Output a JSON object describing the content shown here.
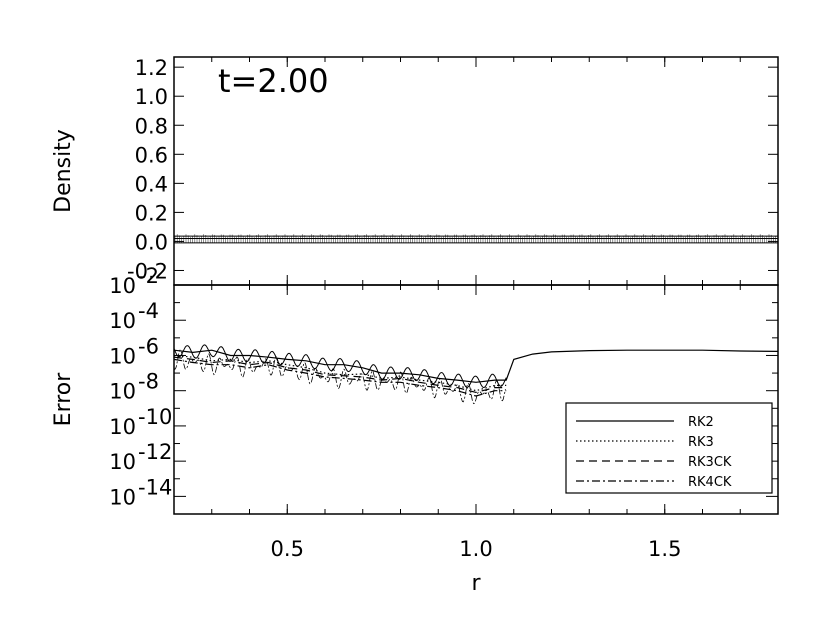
{
  "chart_data": [
    {
      "type": "line",
      "panel": "top",
      "annotation": "t=2.00",
      "xlabel": "",
      "ylabel": "Density",
      "xlim": [
        0.2,
        1.8
      ],
      "ylim": [
        -0.3,
        1.27
      ],
      "yticks": [
        1.2,
        1.0,
        0.8,
        0.6,
        0.4,
        0.2,
        0.0,
        -0.2
      ],
      "ytick_labels": [
        "1.2",
        "1.0",
        "0.8",
        "0.6",
        "0.4",
        "0.2",
        "0.0",
        "-0.2"
      ],
      "grid": false,
      "series": [
        {
          "x": [
            0.2,
            0.25,
            0.3,
            0.35,
            0.4,
            0.45,
            0.5,
            0.55,
            0.6,
            0.65,
            0.7,
            0.75,
            0.8,
            0.85,
            0.9,
            0.95,
            1.0,
            1.05,
            1.1,
            1.15,
            1.2,
            1.25,
            1.3,
            1.35,
            1.4,
            1.45,
            1.5,
            1.55,
            1.6,
            1.65,
            1.7,
            1.75,
            1.8
          ],
          "y": [
            0.02,
            0.02,
            0.02,
            0.02,
            0.02,
            0.02,
            0.02,
            0.02,
            0.02,
            0.02,
            0.02,
            0.02,
            0.02,
            0.02,
            0.02,
            0.02,
            0.02,
            0.02,
            0.02,
            0.02,
            0.02,
            0.02,
            0.02,
            0.02,
            0.02,
            0.02,
            0.02,
            0.02,
            0.02,
            0.02,
            0.02,
            0.02,
            0.02
          ]
        }
      ]
    },
    {
      "type": "line",
      "panel": "bottom",
      "xlabel": "r",
      "ylabel": "Error",
      "xlim": [
        0.2,
        1.8
      ],
      "yscale": "log",
      "ylim": [
        1e-15,
        0.01
      ],
      "xticks": [
        0.5,
        1.0,
        1.5
      ],
      "xtick_labels": [
        "0.5",
        "1.0",
        "1.5"
      ],
      "ytick_bases": [
        "10",
        "10",
        "10",
        "10",
        "10",
        "10",
        "10"
      ],
      "ytick_exponents": [
        "-2",
        "-4",
        "-6",
        "-8",
        "-10",
        "-12",
        "-14"
      ],
      "ytick_values_log10": [
        -2,
        -4,
        -6,
        -8,
        -10,
        -12,
        -14
      ],
      "legend_position": "lower-right",
      "grid": false,
      "series": [
        {
          "name": "RK2",
          "style": "solid",
          "x": [
            0.2,
            0.25,
            0.3,
            0.35,
            0.4,
            0.45,
            0.5,
            0.55,
            0.6,
            0.65,
            0.7,
            0.75,
            0.8,
            0.85,
            0.9,
            0.95,
            1.0,
            1.05,
            1.08,
            1.1,
            1.15,
            1.2,
            1.3,
            1.4,
            1.5,
            1.6,
            1.7,
            1.8
          ],
          "y": [
            2e-06,
            1.5e-06,
            2e-06,
            1e-06,
            1e-06,
            8e-07,
            6e-07,
            5e-07,
            3e-07,
            3e-07,
            2e-07,
            1e-07,
            1e-07,
            8e-08,
            5e-08,
            4e-08,
            3e-08,
            4e-08,
            4e-08,
            6e-07,
            1.2e-06,
            1.6e-06,
            1.9e-06,
            2e-06,
            2e-06,
            2e-06,
            1.8e-06,
            1.7e-06
          ]
        },
        {
          "name": "RK3",
          "style": "dotted",
          "x": [
            0.2,
            0.25,
            0.3,
            0.35,
            0.4,
            0.45,
            0.5,
            0.55,
            0.6,
            0.65,
            0.7,
            0.75,
            0.8,
            0.85,
            0.9,
            0.95,
            1.0,
            1.05,
            1.08
          ],
          "y": [
            1e-06,
            8e-07,
            5e-07,
            6e-07,
            4e-07,
            5e-07,
            3e-07,
            2e-07,
            1e-07,
            8e-08,
            9e-08,
            5e-08,
            6e-08,
            4e-08,
            3e-08,
            2e-08,
            1e-08,
            2e-08,
            2e-08
          ]
        },
        {
          "name": "RK3CK",
          "style": "dashed",
          "x": [
            0.2,
            0.25,
            0.3,
            0.35,
            0.4,
            0.45,
            0.5,
            0.55,
            0.6,
            0.65,
            0.7,
            0.75,
            0.8,
            0.85,
            0.9,
            0.95,
            1.0,
            1.05,
            1.08
          ],
          "y": [
            8e-07,
            6e-07,
            4e-07,
            5e-07,
            3e-07,
            4e-07,
            2e-07,
            1.5e-07,
            8e-08,
            7e-08,
            6e-08,
            4e-08,
            5e-08,
            3e-08,
            2e-08,
            1.5e-08,
            8e-09,
            1.5e-08,
            1.5e-08
          ]
        },
        {
          "name": "RK4CK",
          "style": "dashdot",
          "x": [
            0.2,
            0.25,
            0.3,
            0.35,
            0.4,
            0.45,
            0.5,
            0.55,
            0.6,
            0.65,
            0.7,
            0.75,
            0.8,
            0.85,
            0.9,
            0.95,
            1.0,
            1.05,
            1.08
          ],
          "y": [
            6e-07,
            4e-07,
            3e-07,
            3e-07,
            2e-07,
            3e-07,
            1.5e-07,
            1e-07,
            6e-08,
            5e-08,
            4e-08,
            3e-08,
            3e-08,
            2e-08,
            1.5e-08,
            1e-08,
            5e-09,
            1e-08,
            1e-08
          ]
        }
      ]
    }
  ]
}
